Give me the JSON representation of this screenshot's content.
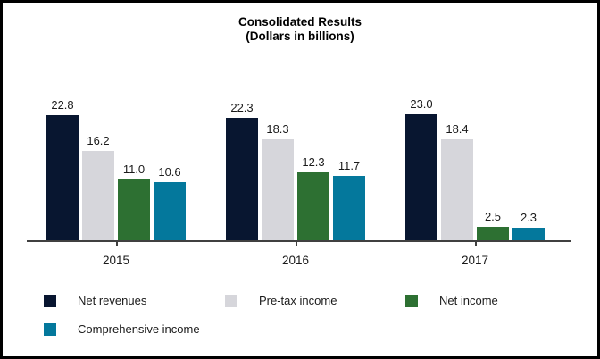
{
  "chart_data": {
    "type": "bar",
    "title": "Consolidated Results",
    "subtitle": "(Dollars in billions)",
    "categories": [
      "2015",
      "2016",
      "2017"
    ],
    "series": [
      {
        "name": "Net revenues",
        "color": "#081630",
        "values": [
          22.8,
          22.3,
          23.0
        ]
      },
      {
        "name": "Pre-tax income",
        "color": "#d6d6db",
        "values": [
          16.2,
          18.3,
          18.4
        ]
      },
      {
        "name": "Net income",
        "color": "#2d7032",
        "values": [
          11.0,
          12.3,
          2.5
        ]
      },
      {
        "name": "Comprehensive income",
        "color": "#04789c",
        "values": [
          10.6,
          11.7,
          2.3
        ]
      }
    ],
    "value_label_format": "one_decimal",
    "ylim": [
      0,
      24
    ],
    "grid": false,
    "legend_position": "bottom",
    "axis_color": "#404040"
  }
}
